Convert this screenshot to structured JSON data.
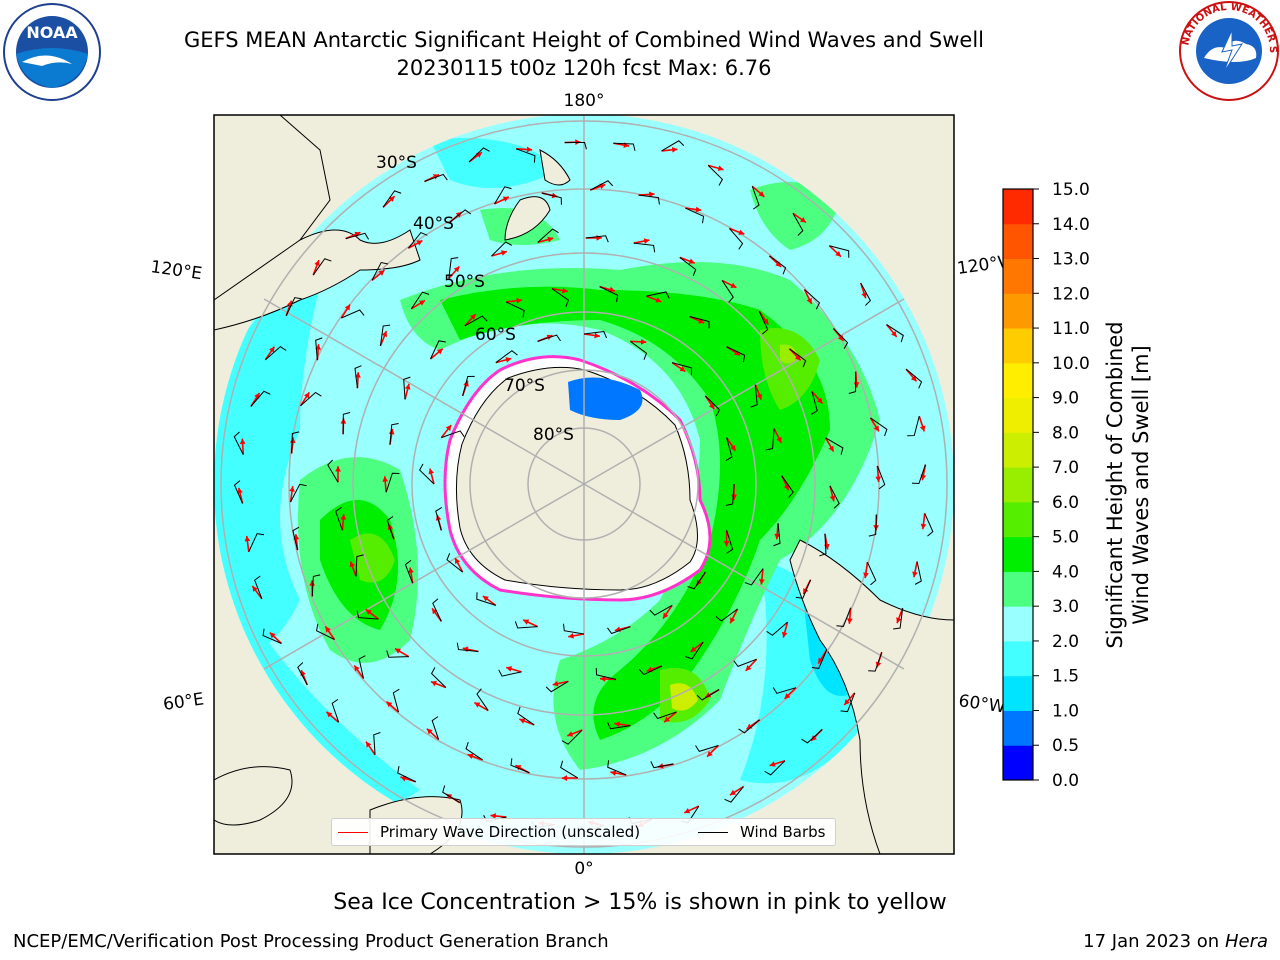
{
  "header": {
    "title_line1": "GEFS MEAN Antarctic Significant Height of Combined Wind Waves and Swell",
    "title_line2": "20230115 t00z 120h fcst   Max: 6.76"
  },
  "logos": {
    "noaa_text": "NOAA",
    "nws_text": "NATIONAL WEATHER SERVICE"
  },
  "map": {
    "projection": "south-polar-stereographic",
    "longitude_labels": {
      "top": "180°",
      "bottom": "0°",
      "upper_left": "120°E",
      "upper_right": "120°W",
      "lower_left": "60°E",
      "lower_right": "60°W"
    },
    "latitude_labels": [
      "30°S",
      "40°S",
      "50°S",
      "60°S",
      "70°S",
      "80°S"
    ],
    "legend": {
      "wave_label": "Primary Wave Direction (unscaled)",
      "barb_label": "Wind Barbs",
      "wave_color": "#ff0000",
      "barb_color": "#000000"
    }
  },
  "colorbar": {
    "label_line1": "Significant Height of Combined",
    "label_line2": "Wind Waves and Swell [m]",
    "ticks": [
      "0.0",
      "0.5",
      "1.0",
      "1.5",
      "2.0",
      "3.0",
      "4.0",
      "5.0",
      "6.0",
      "7.0",
      "8.0",
      "9.0",
      "10.0",
      "11.0",
      "12.0",
      "13.0",
      "14.0",
      "15.0"
    ],
    "colors": [
      "#0000ff",
      "#0077ff",
      "#00e4ff",
      "#43ffff",
      "#99ffff",
      "#4dff80",
      "#00ee00",
      "#55ee00",
      "#99ee00",
      "#ccee00",
      "#eeee00",
      "#ffee00",
      "#ffcc00",
      "#ff9900",
      "#ff7700",
      "#ff5500",
      "#ff2a00"
    ]
  },
  "footer": {
    "sea_ice_note": "Sea Ice Concentration > 15% is shown in pink to yellow",
    "credit_left": "NCEP/EMC/Verification Post Processing Product Generation Branch",
    "credit_right_prefix": "17 Jan 2023 on ",
    "credit_right_host": "Hera"
  },
  "colors": {
    "land": "#efeedc",
    "ocean_default": "#99ffff",
    "grid": "#b0b0b0"
  }
}
